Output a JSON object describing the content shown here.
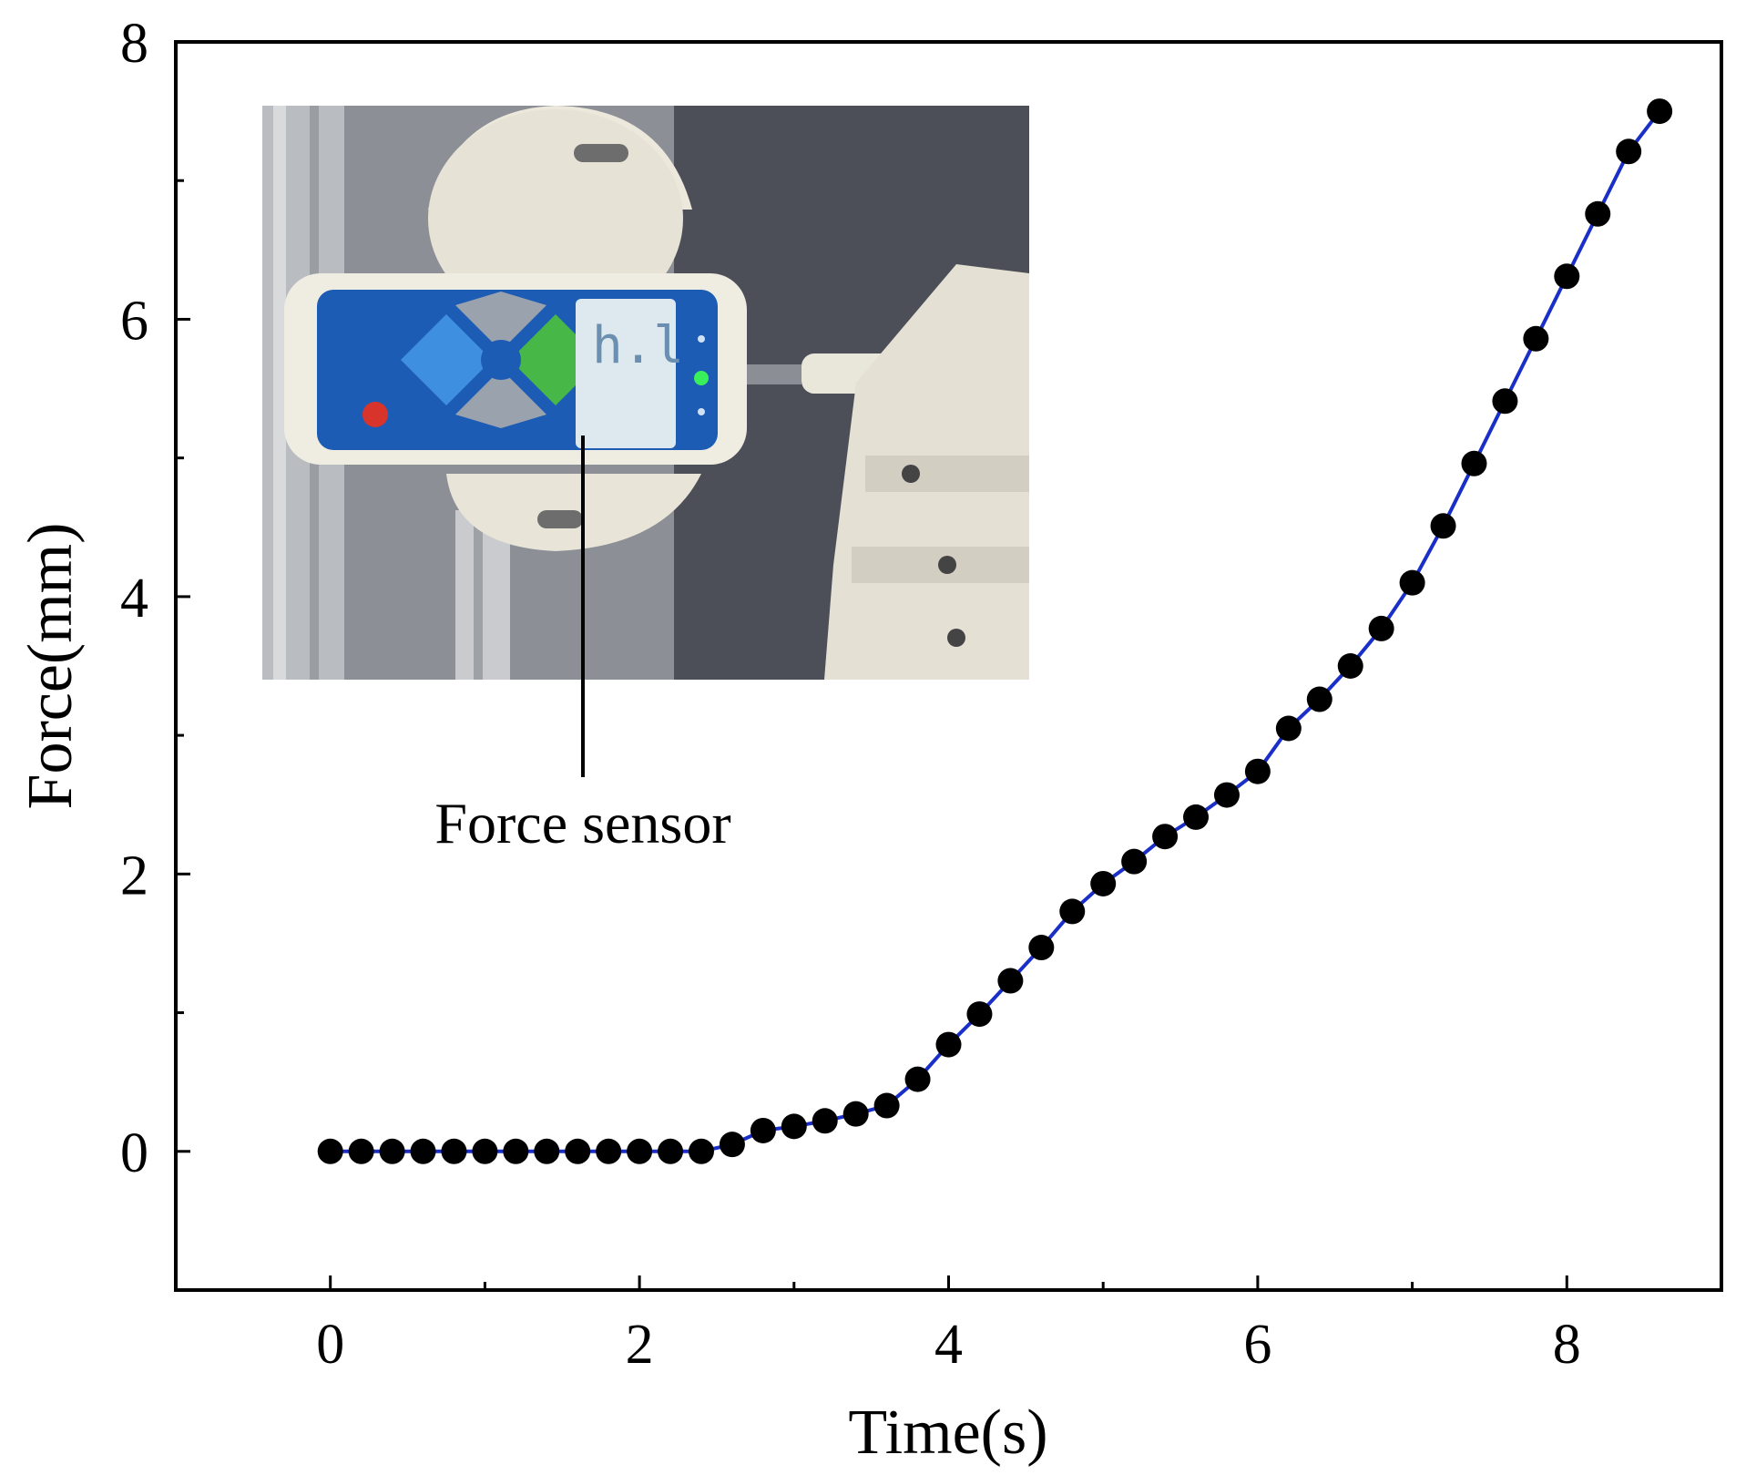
{
  "chart_data": {
    "type": "line",
    "title": "",
    "xlabel": "Time(s)",
    "ylabel": "Force(mm)",
    "xlim": [
      -1,
      9
    ],
    "ylim": [
      -1,
      8
    ],
    "xticks": [
      0,
      2,
      4,
      6,
      8
    ],
    "yticks": [
      0,
      2,
      4,
      6,
      8
    ],
    "grid": false,
    "legend": "none",
    "series": [
      {
        "line_color": "#1a2fc8",
        "marker_color": "#000000",
        "x": [
          0,
          0.2,
          0.4,
          0.6,
          0.8,
          1.0,
          1.2,
          1.4,
          1.6,
          1.8,
          2.0,
          2.2,
          2.4,
          2.6,
          2.8,
          3.0,
          3.2,
          3.4,
          3.6,
          3.8,
          4.0,
          4.2,
          4.4,
          4.6,
          4.8,
          5.0,
          5.2,
          5.4,
          5.6,
          5.8,
          6.0,
          6.2,
          6.4,
          6.6,
          6.8,
          7.0,
          7.2,
          7.4,
          7.6,
          7.8,
          8.0,
          8.2,
          8.4,
          8.6
        ],
        "y": [
          0,
          0,
          0,
          0,
          0,
          0,
          0,
          0,
          0,
          0,
          0,
          0,
          0,
          0.05,
          0.15,
          0.18,
          0.22,
          0.27,
          0.33,
          0.52,
          0.77,
          0.99,
          1.23,
          1.47,
          1.73,
          1.93,
          2.09,
          2.27,
          2.41,
          2.57,
          2.74,
          3.05,
          3.26,
          3.5,
          3.77,
          4.1,
          4.51,
          4.96,
          5.41,
          5.86,
          6.31,
          6.76,
          7.21,
          7.5
        ]
      }
    ],
    "annotations": [
      {
        "text": "Force sensor"
      }
    ]
  }
}
